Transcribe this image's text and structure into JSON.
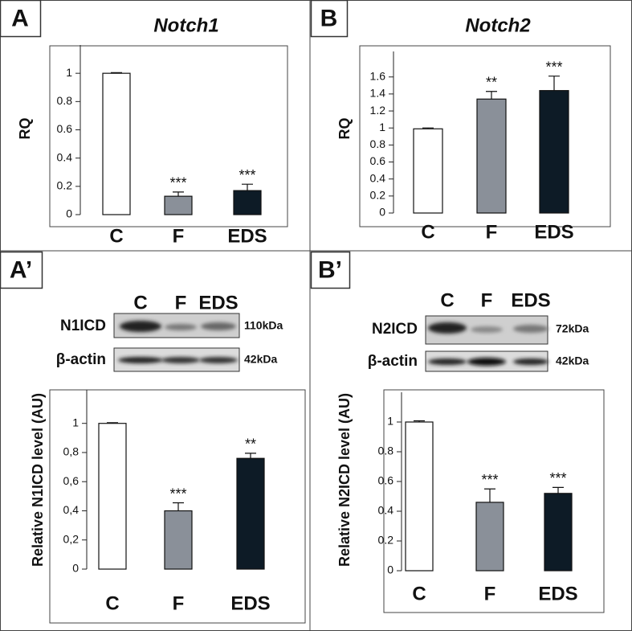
{
  "chart_data": [
    {
      "type": "bar",
      "panel": "A",
      "title": "Notch1",
      "ylabel": "RQ",
      "categories": [
        "C",
        "F",
        "EDS"
      ],
      "values": [
        1.0,
        0.13,
        0.17
      ],
      "errors": [
        0.005,
        0.03,
        0.045
      ],
      "significance": [
        null,
        "***",
        "***"
      ],
      "colors": [
        "#ffffff",
        "#8a9099",
        "#0d1b26"
      ],
      "ylim": [
        0,
        1.2
      ],
      "yticks": [
        0,
        0.2,
        0.4,
        0.6,
        0.8,
        1
      ]
    },
    {
      "type": "bar",
      "panel": "B",
      "title": "Notch2",
      "ylabel": "RQ",
      "categories": [
        "C",
        "F",
        "EDS"
      ],
      "values": [
        0.99,
        1.34,
        1.44
      ],
      "errors": [
        0.01,
        0.09,
        0.17
      ],
      "significance": [
        null,
        "**",
        "***"
      ],
      "colors": [
        "#ffffff",
        "#8a9099",
        "#0d1b26"
      ],
      "ylim": [
        0,
        1.9
      ],
      "yticks": [
        0,
        0.2,
        0.4,
        0.6,
        0.8,
        1,
        1.2,
        1.4,
        1.6
      ]
    },
    {
      "type": "bar",
      "panel": "A’",
      "ylabel": "Relative N1ICD level (AU)",
      "categories": [
        "C",
        "F",
        "EDS"
      ],
      "values": [
        1.0,
        0.4,
        0.76
      ],
      "errors": [
        0.005,
        0.055,
        0.035
      ],
      "significance": [
        null,
        "***",
        "**"
      ],
      "colors": [
        "#ffffff",
        "#8a9099",
        "#0d1b26"
      ],
      "ylim": [
        0,
        1.23
      ],
      "yticks": [
        0,
        {
          "value": 0.2,
          "label": "0,2"
        },
        {
          "value": 0.4,
          "label": "0,4"
        },
        {
          "value": 0.6,
          "label": "0,6"
        },
        {
          "value": 0.8,
          "label": "0,8"
        },
        1
      ],
      "blot": {
        "lanes": [
          "C",
          "F",
          "EDS"
        ],
        "rows": [
          {
            "label": "N1ICD",
            "size": "110kDa"
          },
          {
            "label": "β-actin",
            "size": "42kDa"
          }
        ]
      }
    },
    {
      "type": "bar",
      "panel": "B’",
      "ylabel": "Relative N2ICD level (AU)",
      "categories": [
        "C",
        "F",
        "EDS"
      ],
      "values": [
        1.0,
        0.46,
        0.52
      ],
      "errors": [
        0.008,
        0.09,
        0.04
      ],
      "significance": [
        null,
        "***",
        "***"
      ],
      "colors": [
        "#ffffff",
        "#8a9099",
        "#0d1b26"
      ],
      "ylim": [
        0,
        1.2
      ],
      "yticks": [
        0,
        0.2,
        0.4,
        0.6,
        0.8,
        1
      ],
      "blot": {
        "lanes": [
          "C",
          "F",
          "EDS"
        ],
        "rows": [
          {
            "label": "N2ICD",
            "size": "72kDa"
          },
          {
            "label": "β-actin",
            "size": "42kDa"
          }
        ]
      }
    }
  ]
}
